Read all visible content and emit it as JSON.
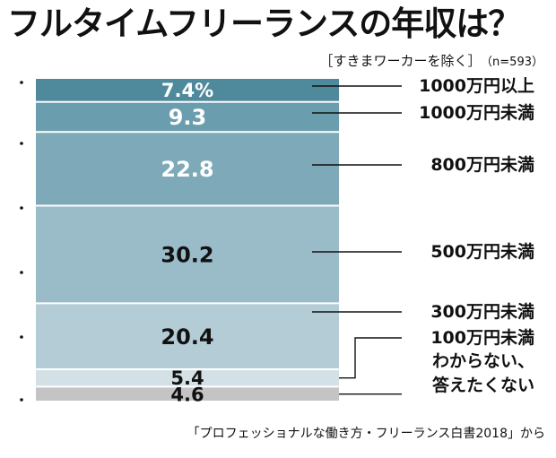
{
  "title": "フルタイムフリーランスの年収は？",
  "subtitle": "［すきまワーカーを除く］",
  "sample": "（n=593）",
  "source": "「プロフェッショナルな働き方・フリーランス白書2018」から",
  "chart_data": {
    "type": "bar",
    "stacked": true,
    "orientation": "vertical",
    "unit": "%",
    "categories": [
      "1000万円以上",
      "1000万円未満",
      "800万円未満",
      "500万円未満",
      "300万円未満",
      "100万円未満",
      "わからない、答えたくない"
    ],
    "values": [
      7.4,
      9.3,
      22.8,
      30.2,
      20.4,
      5.4,
      4.6
    ],
    "value_labels": [
      "7.4%",
      "9.3",
      "22.8",
      "30.2",
      "20.4",
      "5.4",
      "4.6"
    ],
    "label_lines": [
      [
        "1000万円以上"
      ],
      [
        "1000万円未満"
      ],
      [
        "800万円未満"
      ],
      [
        "500万円未満"
      ],
      [
        "300万円未満"
      ],
      [
        "100万円未満"
      ],
      [
        "わからない、",
        "答えたくない"
      ]
    ],
    "colors": [
      "#4e8a9b",
      "#6a9dad",
      "#7ea9b8",
      "#9abcc9",
      "#b4ccd6",
      "#d3e1e6",
      "#c4c4c4"
    ],
    "label_colors": [
      "#ffffff",
      "#ffffff",
      "#ffffff",
      "#111111",
      "#111111",
      "#111111",
      "#111111"
    ]
  }
}
